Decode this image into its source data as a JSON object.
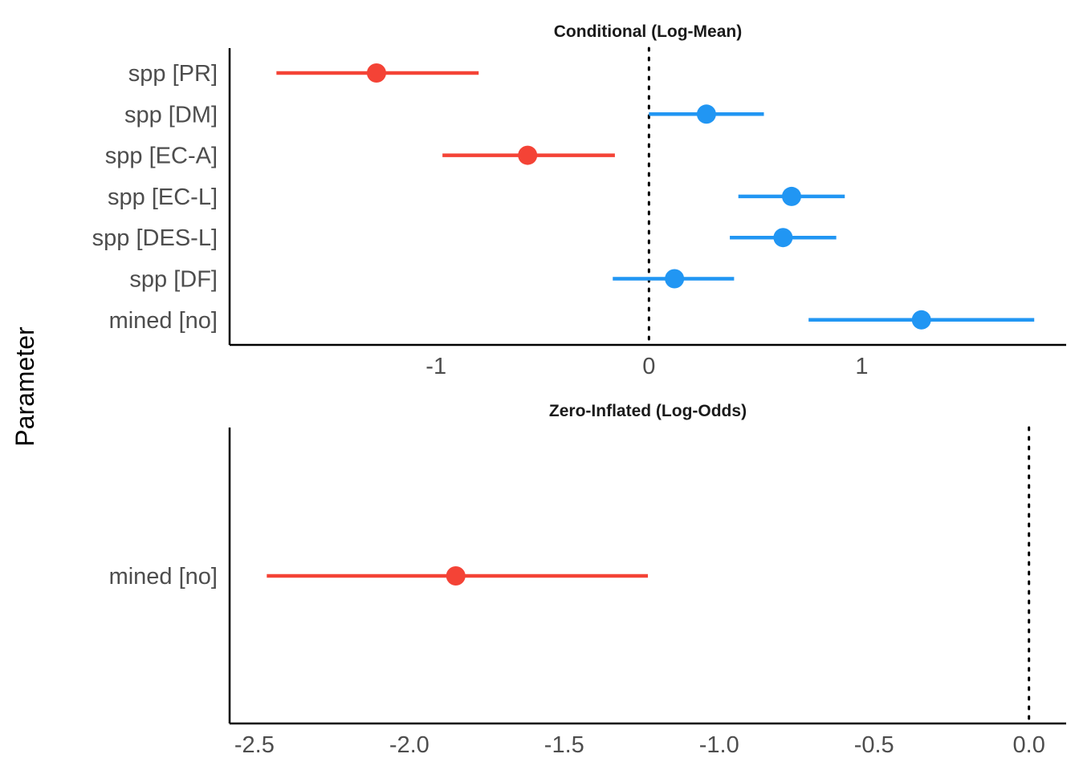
{
  "y_axis_title": "Parameter",
  "colors": {
    "negative": "#f44336",
    "positive": "#2196f3",
    "reference_line": "#000000"
  },
  "chart_data": [
    {
      "type": "forest",
      "title": "Conditional (Log-Mean)",
      "xlabel": "",
      "ylabel": "Parameter",
      "xlim": [
        -1.97,
        1.96
      ],
      "xticks": [
        -1,
        0,
        1
      ],
      "xtick_labels": [
        "-1",
        "0",
        "1"
      ],
      "reference_line": 0,
      "categories": [
        "spp [PR]",
        "spp [DM]",
        "spp [EC-A]",
        "spp [EC-L]",
        "spp [DES-L]",
        "spp [DF]",
        "mined [no]"
      ],
      "estimates": [
        -1.28,
        0.27,
        -0.57,
        0.67,
        0.63,
        0.12,
        1.28
      ],
      "ci_low": [
        -1.75,
        0.0,
        -0.97,
        0.42,
        0.38,
        -0.17,
        0.75
      ],
      "ci_high": [
        -0.8,
        0.54,
        -0.16,
        0.92,
        0.88,
        0.4,
        1.81
      ],
      "grid": false,
      "legend": "none"
    },
    {
      "type": "forest",
      "title": "Zero-Inflated (Log-Odds)",
      "xlabel": "",
      "ylabel": "Parameter",
      "xlim": [
        -2.58,
        0.12
      ],
      "xticks": [
        -2.5,
        -2.0,
        -1.5,
        -1.0,
        -0.5,
        0.0
      ],
      "xtick_labels": [
        "-2.5",
        "-2.0",
        "-1.5",
        "-1.0",
        "-0.5",
        "0.0"
      ],
      "reference_line": 0,
      "categories": [
        "mined [no]"
      ],
      "estimates": [
        -1.85
      ],
      "ci_low": [
        -2.46
      ],
      "ci_high": [
        -1.23
      ],
      "grid": false,
      "legend": "none"
    }
  ]
}
